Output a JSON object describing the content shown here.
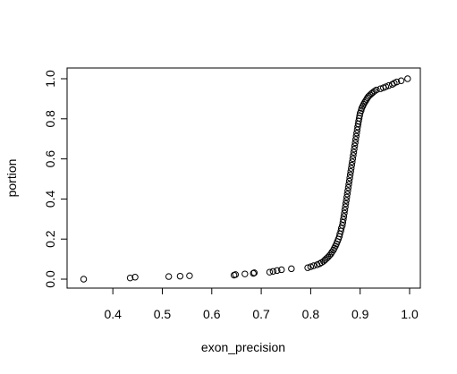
{
  "chart_data": {
    "type": "scatter",
    "title": "",
    "xlabel": "exon_precision",
    "ylabel": "portion",
    "xlim": [
      0.34,
      1.0
    ],
    "ylim": [
      0.0,
      1.0
    ],
    "x_ticks": [
      0.4,
      0.5,
      0.6,
      0.7,
      0.8,
      0.9,
      1.0
    ],
    "x_tick_labels": [
      "0.4",
      "0.5",
      "0.6",
      "0.7",
      "0.8",
      "0.9",
      "1.0"
    ],
    "y_ticks": [
      0.0,
      0.2,
      0.4,
      0.6,
      0.8,
      1.0
    ],
    "y_tick_labels": [
      "0.0",
      "0.2",
      "0.4",
      "0.6",
      "0.8",
      "1.0"
    ],
    "grid": false,
    "legend": "none",
    "marker": "open-circle",
    "series": [
      {
        "x": [
          0.341,
          0.435,
          0.445,
          0.513,
          0.536,
          0.555,
          0.645,
          0.648,
          0.667,
          0.684,
          0.686,
          0.717,
          0.724,
          0.732,
          0.741,
          0.761,
          0.794,
          0.8,
          0.806,
          0.813,
          0.818,
          0.822,
          0.826,
          0.829,
          0.832,
          0.835,
          0.838,
          0.841,
          0.843,
          0.846,
          0.848,
          0.85,
          0.852,
          0.854,
          0.856,
          0.858,
          0.859,
          0.861,
          0.862,
          0.864,
          0.865,
          0.866,
          0.867,
          0.868,
          0.869,
          0.87,
          0.871,
          0.872,
          0.873,
          0.874,
          0.875,
          0.876,
          0.877,
          0.878,
          0.879,
          0.88,
          0.881,
          0.882,
          0.883,
          0.884,
          0.885,
          0.886,
          0.887,
          0.888,
          0.889,
          0.89,
          0.891,
          0.892,
          0.893,
          0.894,
          0.895,
          0.896,
          0.897,
          0.898,
          0.899,
          0.9,
          0.902,
          0.903,
          0.905,
          0.907,
          0.909,
          0.911,
          0.913,
          0.915,
          0.917,
          0.92,
          0.923,
          0.926,
          0.929,
          0.933,
          0.941,
          0.947,
          0.952,
          0.958,
          0.965,
          0.969,
          0.974,
          0.983,
          0.996
        ],
        "y": [
          0.0,
          0.006,
          0.01,
          0.013,
          0.015,
          0.017,
          0.02,
          0.023,
          0.026,
          0.029,
          0.032,
          0.035,
          0.039,
          0.043,
          0.047,
          0.052,
          0.057,
          0.062,
          0.067,
          0.072,
          0.077,
          0.083,
          0.089,
          0.096,
          0.103,
          0.11,
          0.118,
          0.126,
          0.135,
          0.145,
          0.155,
          0.165,
          0.176,
          0.188,
          0.2,
          0.213,
          0.226,
          0.24,
          0.254,
          0.268,
          0.283,
          0.298,
          0.313,
          0.329,
          0.345,
          0.361,
          0.377,
          0.393,
          0.409,
          0.425,
          0.441,
          0.457,
          0.473,
          0.489,
          0.505,
          0.521,
          0.537,
          0.553,
          0.569,
          0.585,
          0.601,
          0.617,
          0.633,
          0.649,
          0.665,
          0.681,
          0.697,
          0.713,
          0.729,
          0.745,
          0.76,
          0.775,
          0.789,
          0.803,
          0.816,
          0.829,
          0.841,
          0.852,
          0.862,
          0.872,
          0.881,
          0.889,
          0.897,
          0.905,
          0.912,
          0.919,
          0.926,
          0.932,
          0.938,
          0.944,
          0.95,
          0.955,
          0.96,
          0.966,
          0.972,
          0.978,
          0.984,
          0.99,
          1.0
        ]
      }
    ]
  }
}
